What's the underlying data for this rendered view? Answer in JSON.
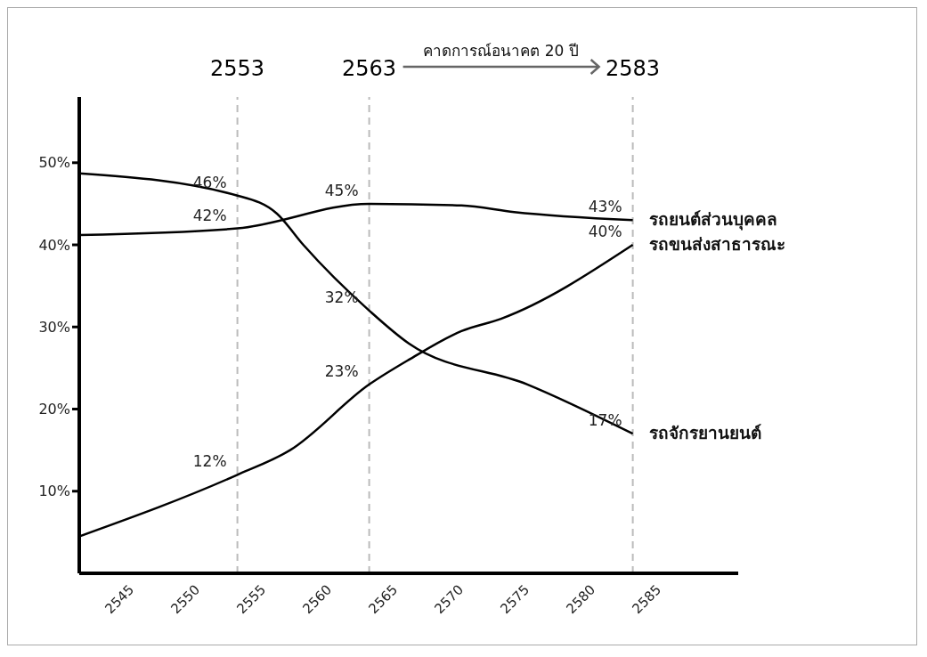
{
  "chart_data": {
    "type": "line",
    "xlim": [
      2541,
      2591
    ],
    "xticks": [
      2545,
      2550,
      2555,
      2560,
      2565,
      2570,
      2575,
      2580,
      2585
    ],
    "ylim": [
      0,
      58
    ],
    "yticks": [
      {
        "value": 10,
        "label": "10%"
      },
      {
        "value": 20,
        "label": "20%"
      },
      {
        "value": 30,
        "label": "30%"
      },
      {
        "value": 40,
        "label": "40%"
      },
      {
        "value": 50,
        "label": "50%"
      }
    ],
    "grid": false,
    "legend": false,
    "marker": "none",
    "line_style": "solid",
    "series": [
      {
        "name": "รถยนต์ส่วนบุคคล",
        "color": "#000000",
        "x": [
          2541,
          2553,
          2563,
          2570,
          2574,
          2583
        ],
        "values": [
          41.2,
          42,
          45,
          44.8,
          44,
          43
        ],
        "value_labels": [
          null,
          "42%",
          "45%",
          null,
          null,
          "43%"
        ]
      },
      {
        "name": "รถขนส่งสาธารณะ",
        "color": "#000000",
        "x": [
          2541,
          2553,
          2557,
          2563,
          2566,
          2570,
          2573,
          2583
        ],
        "values": [
          4.5,
          12,
          15,
          23,
          26,
          29.5,
          31,
          40
        ],
        "value_labels": [
          null,
          "12%",
          null,
          "23%",
          null,
          null,
          null,
          "40%"
        ]
      },
      {
        "name": "รถจักรยานยนต์",
        "color": "#000000",
        "x": [
          2541,
          2553,
          2556,
          2558,
          2563,
          2566,
          2575,
          2583
        ],
        "values": [
          48.7,
          46,
          43.8,
          40,
          32,
          28,
          23,
          17
        ],
        "value_labels": [
          null,
          "46%",
          null,
          null,
          "32%",
          null,
          null,
          "17%"
        ]
      }
    ],
    "ref_lines": [
      {
        "axis": "x",
        "value": 2553,
        "label": "2553",
        "color": "#bbbbbb",
        "line_style": "dashed"
      },
      {
        "axis": "x",
        "value": 2563,
        "label": "2563",
        "color": "#bbbbbb",
        "line_style": "dashed"
      },
      {
        "axis": "x",
        "value": 2583,
        "label": "2583",
        "color": "#bbbbbb",
        "line_style": "dashed"
      }
    ],
    "annotations": [
      "คาดการณ์อนาคต 20 ปี"
    ]
  }
}
